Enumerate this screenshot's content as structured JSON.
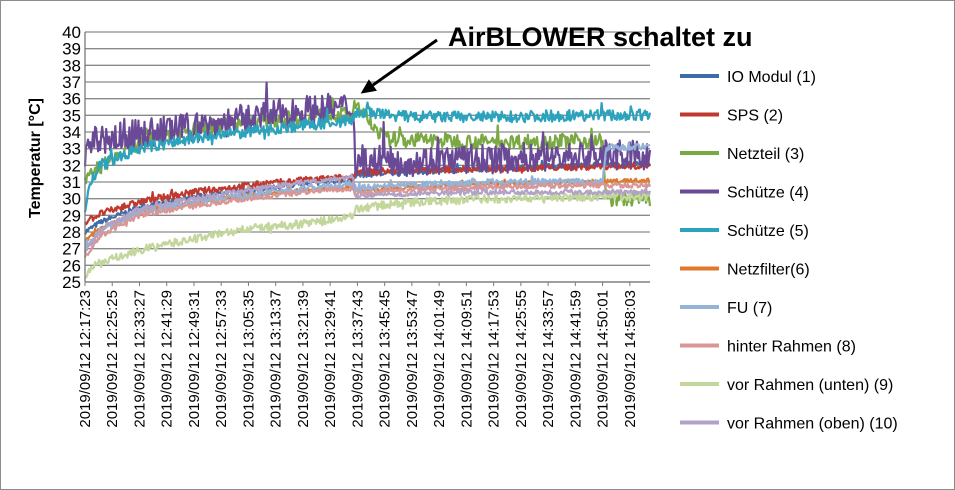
{
  "chart_data": {
    "type": "line",
    "ylabel": "Temperatur [°C]",
    "xlabel": "",
    "ylim": [
      25,
      40
    ],
    "yticks": [
      25,
      26,
      27,
      28,
      29,
      30,
      31,
      32,
      33,
      34,
      35,
      36,
      37,
      38,
      39,
      40
    ],
    "grid": true,
    "legend_position": "right",
    "x_start": "2019/09/12 12:17:23",
    "x_end": "2019/09/12 15:04:00",
    "x_tick_labels": [
      "2019/09/12 12:17:23",
      "2019/09/12 12:25:25",
      "2019/09/12 12:33:27",
      "2019/09/12 12:41:29",
      "2019/09/12 12:49:31",
      "2019/09/12 12:57:33",
      "2019/09/12 13:05:35",
      "2019/09/12 13:13:37",
      "2019/09/12 13:21:39",
      "2019/09/12 13:29:41",
      "2019/09/12 13:37:43",
      "2019/09/12 13:45:45",
      "2019/09/12 13:53:47",
      "2019/09/12 14:01:49",
      "2019/09/12 14:09:51",
      "2019/09/12 14:17:53",
      "2019/09/12 14:25:55",
      "2019/09/12 14:33:57",
      "2019/09/12 14:41:59",
      "2019/09/12 14:50:01",
      "2019/09/12 14:58:03"
    ],
    "annotation": {
      "text": "AirBLOWER schaltet zu",
      "x": "2019/09/12 13:38:40",
      "y": 36.3
    },
    "series": [
      {
        "name": "IO Modul (1)",
        "color": "#3e6ca8",
        "noise": 0.15,
        "x": [
          "12:17:23",
          "12:22:00",
          "12:33:27",
          "12:49:31",
          "13:05:35",
          "13:21:39",
          "13:36:30",
          "13:37:00",
          "13:53:47",
          "14:17:53",
          "14:41:59",
          "15:04:00"
        ],
        "y": [
          28.0,
          28.6,
          29.5,
          30.1,
          30.5,
          30.9,
          31.1,
          31.4,
          31.6,
          31.8,
          32.0,
          32.1
        ]
      },
      {
        "name": "SPS (2)",
        "color": "#c0392e",
        "noise": 0.2,
        "x": [
          "12:17:23",
          "12:22:00",
          "12:33:27",
          "12:49:31",
          "13:05:35",
          "13:21:39",
          "13:36:30",
          "13:37:00",
          "13:53:47",
          "14:17:53",
          "14:41:59",
          "15:04:00"
        ],
        "y": [
          28.6,
          29.1,
          29.8,
          30.4,
          30.8,
          31.1,
          31.3,
          31.6,
          31.7,
          31.8,
          31.9,
          32.0
        ]
      },
      {
        "name": "Netzteil (3)",
        "color": "#7aa843",
        "noise": 0.45,
        "x": [
          "12:17:23",
          "12:21:00",
          "12:33:27",
          "12:49:31",
          "13:05:35",
          "13:21:39",
          "13:36:30",
          "13:37:00",
          "13:39:00",
          "13:45:45",
          "14:17:53",
          "14:50:01",
          "14:51:00",
          "15:04:00"
        ],
        "y": [
          31.0,
          31.8,
          33.4,
          34.2,
          34.6,
          34.9,
          35.1,
          35.6,
          35.2,
          33.6,
          33.4,
          33.5,
          30.0,
          30.0
        ]
      },
      {
        "name": "Schütze (4)",
        "color": "#6a4a96",
        "noise": 0.9,
        "x": [
          "12:17:23",
          "12:20:00",
          "12:33:27",
          "12:49:31",
          "13:05:35",
          "13:21:39",
          "13:36:30",
          "13:37:00",
          "13:45:45",
          "14:17:53",
          "14:50:01",
          "15:04:00"
        ],
        "y": [
          32.8,
          33.4,
          33.9,
          34.3,
          34.8,
          35.3,
          35.5,
          32.3,
          32.2,
          32.4,
          32.6,
          32.6
        ]
      },
      {
        "name": "Schütze (5)",
        "color": "#2ca3bd",
        "noise": 0.35,
        "x": [
          "12:17:23",
          "12:18:30",
          "12:22:00",
          "12:33:27",
          "12:49:31",
          "13:05:35",
          "13:21:39",
          "13:36:30",
          "13:37:00",
          "13:53:47",
          "14:17:53",
          "14:41:59",
          "15:04:00"
        ],
        "y": [
          29.0,
          30.8,
          32.0,
          33.0,
          33.6,
          34.0,
          34.4,
          34.7,
          35.2,
          34.9,
          34.9,
          35.0,
          35.0
        ]
      },
      {
        "name": "Netzfilter(6)",
        "color": "#e0782e",
        "noise": 0.12,
        "x": [
          "12:17:23",
          "12:22:00",
          "12:33:27",
          "12:49:31",
          "13:05:35",
          "13:21:39",
          "13:36:30",
          "13:37:00",
          "13:53:47",
          "14:17:53",
          "14:41:59",
          "15:04:00"
        ],
        "y": [
          27.5,
          28.2,
          29.2,
          29.8,
          30.2,
          30.5,
          30.7,
          30.5,
          30.7,
          30.9,
          31.0,
          31.1
        ]
      },
      {
        "name": "FU (7)",
        "color": "#95b3d7",
        "noise": 0.2,
        "x": [
          "12:17:23",
          "12:22:00",
          "12:33:27",
          "12:49:31",
          "13:05:35",
          "13:21:39",
          "13:36:30",
          "13:37:00",
          "13:53:47",
          "14:17:53",
          "14:41:59",
          "14:50:01",
          "14:51:00",
          "15:04:00"
        ],
        "y": [
          27.0,
          28.0,
          29.2,
          29.8,
          30.2,
          30.6,
          30.9,
          30.6,
          30.8,
          31.0,
          31.0,
          31.0,
          33.0,
          33.2
        ]
      },
      {
        "name": "hinter Rahmen (8)",
        "color": "#d99694",
        "noise": 0.15,
        "x": [
          "12:17:23",
          "12:22:00",
          "12:33:27",
          "12:49:31",
          "13:05:35",
          "13:21:39",
          "13:36:30",
          "13:37:00",
          "13:53:47",
          "14:17:53",
          "14:41:59",
          "15:04:00"
        ],
        "y": [
          26.5,
          27.8,
          29.0,
          29.6,
          30.0,
          30.4,
          30.6,
          30.3,
          30.5,
          30.7,
          30.8,
          30.8
        ]
      },
      {
        "name": "vor Rahmen (unten) (9)",
        "color": "#c3d69b",
        "noise": 0.25,
        "x": [
          "12:17:23",
          "12:20:00",
          "12:33:27",
          "12:49:31",
          "13:05:35",
          "13:21:39",
          "13:36:30",
          "13:37:00",
          "13:53:47",
          "14:17:53",
          "14:41:59",
          "15:04:00"
        ],
        "y": [
          25.3,
          26.0,
          26.9,
          27.6,
          28.2,
          28.5,
          28.9,
          29.4,
          29.8,
          30.0,
          30.1,
          30.1
        ]
      },
      {
        "name": "vor Rahmen (oben) (10)",
        "color": "#b3a2c7",
        "noise": 0.15,
        "x": [
          "12:17:23",
          "12:22:00",
          "12:33:27",
          "12:49:31",
          "13:05:35",
          "13:21:39",
          "13:36:30",
          "13:37:00",
          "13:53:47",
          "14:17:53",
          "14:41:59",
          "15:04:00"
        ],
        "y": [
          26.8,
          28.2,
          29.4,
          30.0,
          30.5,
          31.0,
          31.3,
          30.2,
          30.3,
          30.4,
          30.4,
          30.4
        ]
      }
    ]
  }
}
